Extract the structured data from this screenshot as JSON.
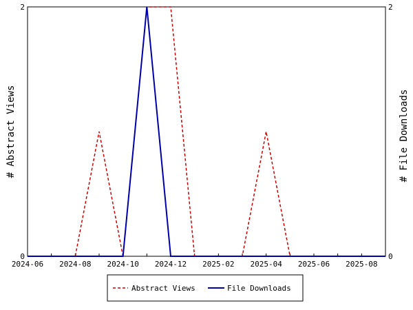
{
  "chart_data": {
    "type": "line",
    "x": [
      "2024-06",
      "2024-07",
      "2024-08",
      "2024-09",
      "2024-10",
      "2024-11",
      "2024-12",
      "2025-01",
      "2025-02",
      "2025-03",
      "2025-04",
      "2025-05",
      "2025-06",
      "2025-07",
      "2025-08",
      "2025-09"
    ],
    "x_tick_labels": [
      "2024-06",
      "2024-08",
      "2024-10",
      "2024-12",
      "2025-02",
      "2025-04",
      "2025-06",
      "2025-08"
    ],
    "series": [
      {
        "name": "Abstract Views",
        "axis": "left",
        "color": "#cc0000",
        "style": "dashed",
        "values": [
          0,
          0,
          0,
          1,
          0,
          2,
          2,
          0,
          0,
          0,
          1,
          0,
          0,
          0,
          0,
          0
        ]
      },
      {
        "name": "File Downloads",
        "axis": "right",
        "color": "#0000aa",
        "style": "solid",
        "values": [
          0,
          0,
          0,
          0,
          0,
          2,
          0,
          0,
          0,
          0,
          0,
          0,
          0,
          0,
          0,
          0
        ]
      }
    ],
    "ylabel_left": "# Abstract Views",
    "ylabel_right": "# File Downloads",
    "ylim_left": [
      0,
      2
    ],
    "ylim_right": [
      0,
      2
    ],
    "y_ticks_left": [
      "0",
      "2"
    ],
    "y_ticks_right": [
      "0",
      "2"
    ],
    "grid": false,
    "legend_position": "bottom-center"
  }
}
